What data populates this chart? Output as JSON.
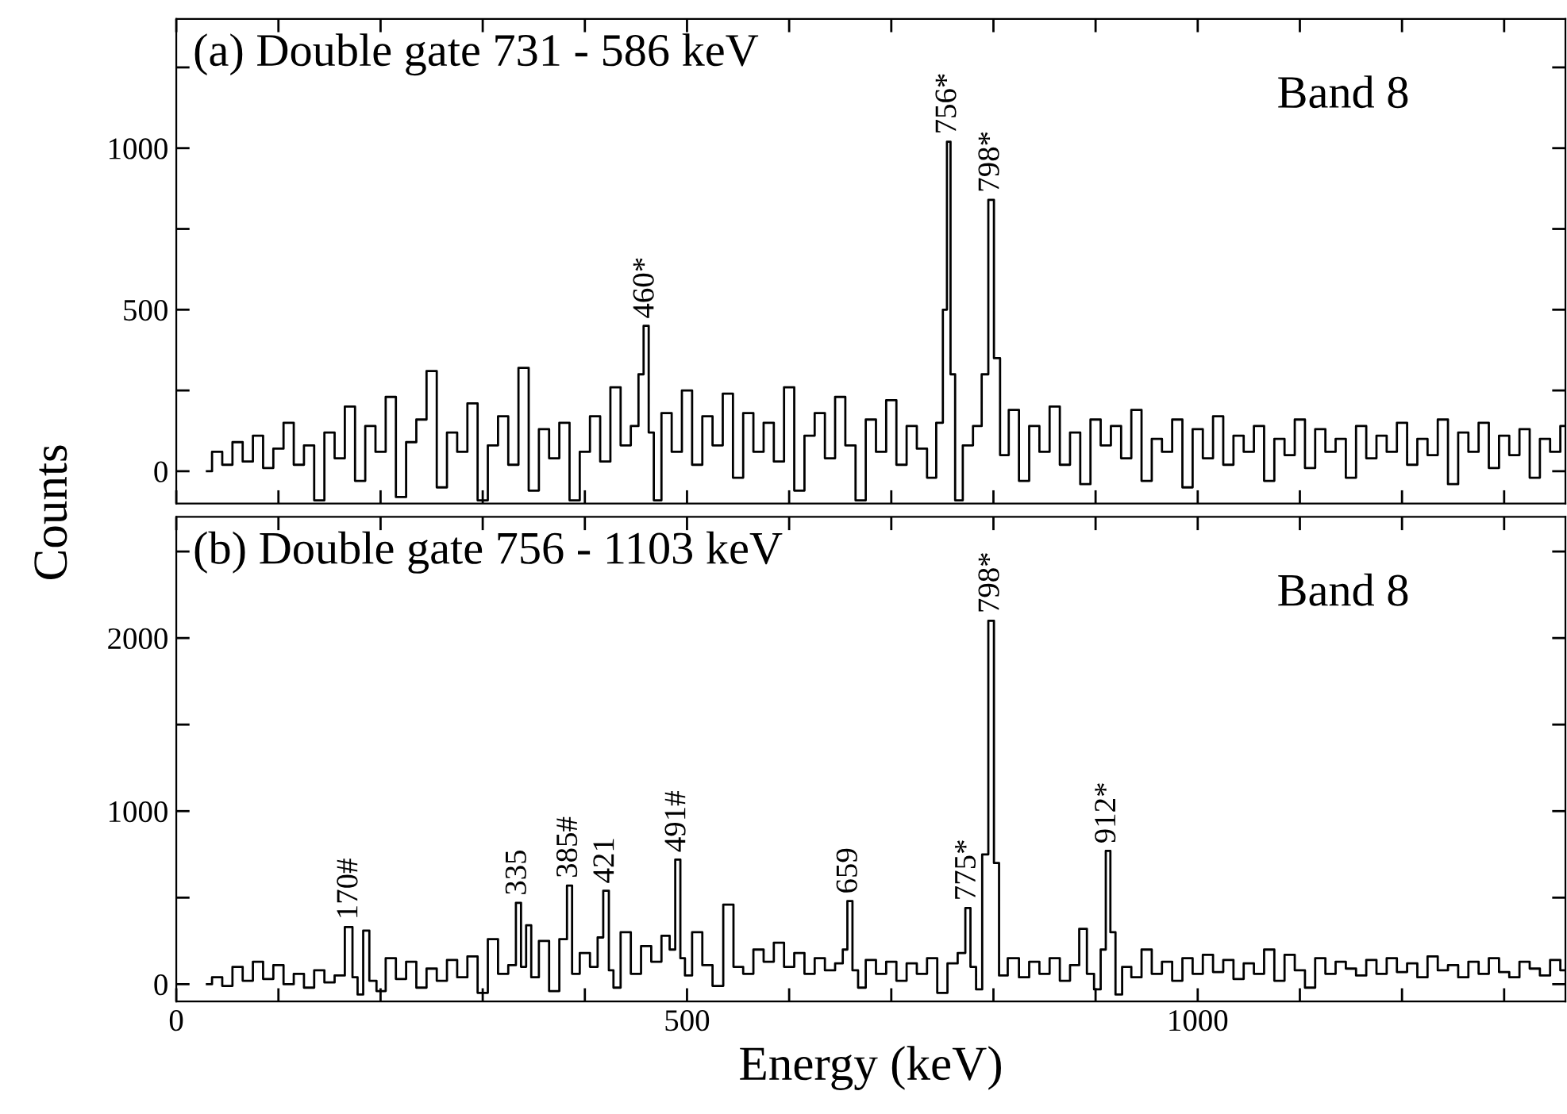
{
  "chart_data": [
    {
      "type": "step",
      "title": "(a) Double gate 731 - 586 keV",
      "ylabel": "Counts",
      "tick_labels": "y",
      "grid": false,
      "legend": false,
      "xlim": [
        0,
        1360
      ],
      "xticks": [
        0,
        {
          "value": 100,
          "label": null
        },
        {
          "value": 200,
          "label": null
        },
        {
          "value": 300,
          "label": null
        },
        {
          "value": 400,
          "label": null
        },
        500,
        {
          "value": 600,
          "label": null
        },
        {
          "value": 700,
          "label": null
        },
        {
          "value": 800,
          "label": null
        },
        {
          "value": 900,
          "label": null
        },
        1000,
        {
          "value": 1100,
          "label": null
        },
        {
          "value": 1200,
          "label": null
        },
        {
          "value": 1300,
          "label": null
        }
      ],
      "ylim": [
        -100,
        1400
      ],
      "yticks": [
        0,
        {
          "value": 250,
          "label": null
        },
        500,
        {
          "value": 750,
          "label": null
        },
        1000,
        {
          "value": 1250,
          "label": null
        }
      ],
      "series": [
        {
          "color": "#000000",
          "x": [
            30,
            40,
            50,
            60,
            70,
            80,
            90,
            100,
            110,
            120,
            130,
            140,
            150,
            160,
            170,
            180,
            190,
            200,
            210,
            220,
            230,
            240,
            250,
            260,
            270,
            280,
            290,
            300,
            310,
            320,
            330,
            340,
            350,
            360,
            370,
            380,
            390,
            400,
            410,
            420,
            430,
            440,
            450,
            455,
            460,
            465,
            470,
            480,
            490,
            500,
            510,
            520,
            530,
            540,
            550,
            560,
            570,
            580,
            590,
            600,
            610,
            620,
            630,
            640,
            650,
            660,
            670,
            680,
            690,
            700,
            710,
            720,
            730,
            740,
            748,
            753,
            756,
            760,
            765,
            775,
            785,
            792,
            798,
            803,
            810,
            820,
            830,
            840,
            850,
            860,
            870,
            880,
            890,
            900,
            910,
            920,
            930,
            940,
            950,
            960,
            970,
            980,
            990,
            1000,
            1010,
            1020,
            1030,
            1040,
            1050,
            1060,
            1070,
            1080,
            1090,
            1100,
            1110,
            1120,
            1130,
            1140,
            1150,
            1160,
            1170,
            1180,
            1190,
            1200,
            1210,
            1220,
            1230,
            1240,
            1250,
            1260,
            1270,
            1280,
            1290,
            1300,
            1310,
            1320,
            1330,
            1340,
            1350,
            1360
          ],
          "values": [
            0,
            60,
            20,
            90,
            30,
            110,
            10,
            70,
            150,
            20,
            80,
            -90,
            120,
            40,
            200,
            -30,
            140,
            60,
            230,
            -80,
            90,
            160,
            310,
            -50,
            120,
            60,
            210,
            -90,
            80,
            170,
            20,
            320,
            -60,
            130,
            40,
            150,
            -90,
            60,
            170,
            30,
            260,
            80,
            140,
            300,
            450,
            120,
            -90,
            180,
            60,
            250,
            20,
            170,
            80,
            240,
            -20,
            180,
            60,
            150,
            30,
            260,
            -60,
            110,
            180,
            40,
            230,
            80,
            -90,
            160,
            60,
            220,
            20,
            140,
            70,
            -20,
            150,
            500,
            1020,
            300,
            -90,
            80,
            140,
            300,
            840,
            350,
            50,
            190,
            -30,
            140,
            60,
            200,
            20,
            120,
            -40,
            160,
            80,
            140,
            40,
            190,
            -30,
            100,
            60,
            160,
            -50,
            130,
            40,
            170,
            20,
            110,
            60,
            140,
            -30,
            100,
            50,
            160,
            10,
            130,
            60,
            100,
            -20,
            140,
            40,
            110,
            60,
            150,
            20,
            100,
            50,
            160,
            -40,
            120,
            60,
            150,
            10,
            110,
            50,
            130,
            -20,
            100,
            60,
            140
          ]
        }
      ],
      "annotations": [
        {
          "text": "460*",
          "x": 460,
          "y": 450
        },
        {
          "text": "756*",
          "x": 756,
          "y": 1020
        },
        {
          "text": "798*",
          "x": 798,
          "y": 840
        },
        "Band 8"
      ]
    },
    {
      "type": "step",
      "title": "(b) Double gate 756 - 1103 keV",
      "xlabel": "Energy (keV)",
      "grid": false,
      "legend": false,
      "xlim": [
        0,
        1360
      ],
      "xticks": [
        0,
        {
          "value": 100,
          "label": null
        },
        {
          "value": 200,
          "label": null
        },
        {
          "value": 300,
          "label": null
        },
        {
          "value": 400,
          "label": null
        },
        500,
        {
          "value": 600,
          "label": null
        },
        {
          "value": 700,
          "label": null
        },
        {
          "value": 800,
          "label": null
        },
        {
          "value": 900,
          "label": null
        },
        1000,
        {
          "value": 1100,
          "label": null
        },
        {
          "value": 1200,
          "label": null
        },
        {
          "value": 1300,
          "label": null
        }
      ],
      "ylim": [
        -100,
        2700
      ],
      "yticks": [
        0,
        {
          "value": 500,
          "label": null
        },
        1000,
        {
          "value": 1500,
          "label": null
        },
        2000,
        {
          "value": 2500,
          "label": null
        }
      ],
      "series": [
        {
          "color": "#000000",
          "x": [
            30,
            40,
            50,
            60,
            70,
            80,
            90,
            100,
            110,
            120,
            130,
            140,
            150,
            160,
            170,
            175,
            180,
            186,
            192,
            200,
            210,
            220,
            230,
            240,
            250,
            260,
            270,
            280,
            290,
            300,
            310,
            320,
            330,
            335,
            340,
            345,
            350,
            360,
            370,
            380,
            385,
            390,
            400,
            410,
            415,
            421,
            426,
            430,
            440,
            450,
            460,
            470,
            480,
            486,
            491,
            496,
            500,
            510,
            520,
            530,
            541,
            550,
            560,
            570,
            580,
            590,
            600,
            610,
            620,
            630,
            640,
            650,
            655,
            659,
            665,
            670,
            680,
            690,
            700,
            710,
            720,
            730,
            740,
            750,
            760,
            770,
            775,
            780,
            786,
            792,
            798,
            803,
            808,
            820,
            830,
            840,
            850,
            860,
            870,
            880,
            888,
            895,
            902,
            908,
            912,
            917,
            922,
            930,
            940,
            950,
            960,
            970,
            980,
            990,
            1000,
            1010,
            1020,
            1030,
            1040,
            1050,
            1060,
            1070,
            1080,
            1090,
            1100,
            1110,
            1120,
            1130,
            1140,
            1150,
            1160,
            1170,
            1180,
            1190,
            1200,
            1210,
            1220,
            1230,
            1240,
            1250,
            1260,
            1270,
            1280,
            1290,
            1300,
            1310,
            1320,
            1330,
            1340,
            1350,
            1360
          ],
          "values": [
            0,
            40,
            -10,
            100,
            20,
            130,
            30,
            110,
            0,
            60,
            -20,
            80,
            10,
            50,
            330,
            40,
            -60,
            310,
            20,
            -40,
            150,
            30,
            130,
            -20,
            90,
            20,
            140,
            40,
            160,
            -50,
            260,
            60,
            110,
            470,
            100,
            340,
            40,
            250,
            -40,
            260,
            570,
            60,
            180,
            100,
            270,
            540,
            80,
            -20,
            300,
            60,
            220,
            130,
            280,
            200,
            720,
            150,
            50,
            300,
            110,
            -10,
            460,
            100,
            60,
            200,
            130,
            240,
            100,
            180,
            60,
            150,
            80,
            120,
            200,
            480,
            80,
            -20,
            140,
            60,
            130,
            20,
            120,
            60,
            150,
            -50,
            120,
            180,
            440,
            100,
            -30,
            750,
            2100,
            700,
            50,
            150,
            40,
            130,
            60,
            150,
            20,
            110,
            320,
            60,
            -30,
            200,
            770,
            300,
            -60,
            100,
            40,
            200,
            60,
            130,
            20,
            150,
            60,
            170,
            70,
            140,
            30,
            120,
            60,
            200,
            20,
            170,
            80,
            -20,
            150,
            60,
            130,
            90,
            50,
            140,
            60,
            150,
            70,
            120,
            40,
            160,
            80,
            110,
            40,
            130,
            60,
            150,
            70,
            40,
            130,
            90,
            50,
            140,
            80
          ]
        }
      ],
      "annotations": [
        {
          "text": "170#",
          "x": 170,
          "y": 330
        },
        {
          "text": "335",
          "x": 335,
          "y": 470
        },
        {
          "text": "385#",
          "x": 385,
          "y": 570
        },
        {
          "text": "421",
          "x": 421,
          "y": 540
        },
        {
          "text": "491#",
          "x": 491,
          "y": 720
        },
        {
          "text": "659",
          "x": 659,
          "y": 480
        },
        {
          "text": "775*",
          "x": 775,
          "y": 440
        },
        {
          "text": "798*",
          "x": 798,
          "y": 2100
        },
        {
          "text": "912*",
          "x": 912,
          "y": 770
        },
        "Band 8"
      ]
    }
  ]
}
